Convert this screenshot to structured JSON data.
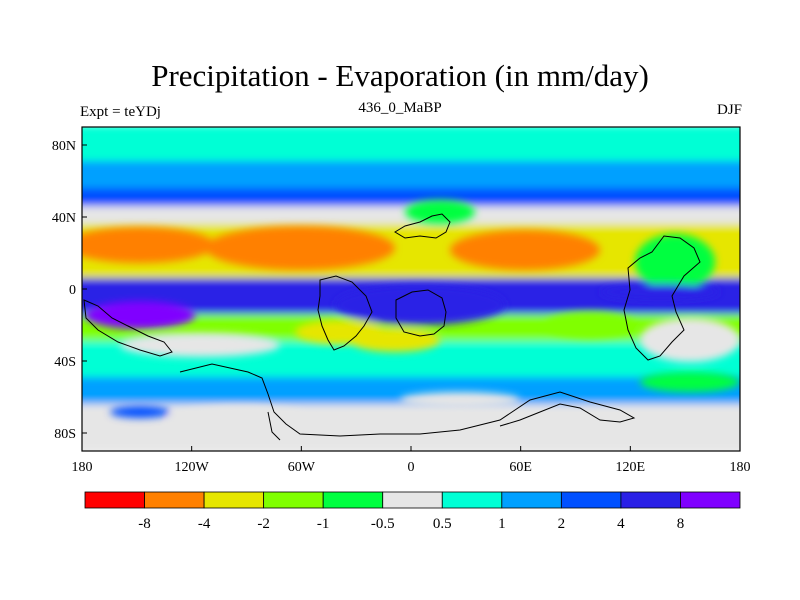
{
  "title": "Precipitation - Evaporation (in mm/day)",
  "subtitle_left": "Expt = teYDj",
  "subtitle_center": "436_0_MaBP",
  "subtitle_right": "DJF",
  "chart_data": {
    "type": "heatmap",
    "title": "Precipitation - Evaporation (in mm/day)",
    "xlabel": "",
    "ylabel": "",
    "xlim": [
      -180,
      180
    ],
    "ylim": [
      -90,
      90
    ],
    "x_ticks": [
      {
        "value": -180,
        "label": "180"
      },
      {
        "value": -120,
        "label": "120W"
      },
      {
        "value": -60,
        "label": "60W"
      },
      {
        "value": 0,
        "label": "0"
      },
      {
        "value": 60,
        "label": "60E"
      },
      {
        "value": 120,
        "label": "120E"
      },
      {
        "value": 180,
        "label": "180"
      }
    ],
    "y_ticks": [
      {
        "value": 80,
        "label": "80N"
      },
      {
        "value": 40,
        "label": "40N"
      },
      {
        "value": 0,
        "label": "0"
      },
      {
        "value": -40,
        "label": "40S"
      },
      {
        "value": -80,
        "label": "80S"
      }
    ],
    "colorbar": {
      "boundaries": [
        "-8",
        "-4",
        "-2",
        "-1",
        "-0.5",
        "0.5",
        "1",
        "2",
        "4",
        "8"
      ],
      "colors": [
        "#ff0000",
        "#ff8000",
        "#e6e600",
        "#80ff00",
        "#00ff40",
        "#e6e6e6",
        "#00ffd5",
        "#00a0ff",
        "#0050ff",
        "#2a20e6",
        "#8000ff"
      ]
    },
    "field_bands": [
      {
        "lat_from": 90,
        "lat_to": 70,
        "level": 6,
        "description": "cyan, 0.5 to 1"
      },
      {
        "lat_from": 70,
        "lat_to": 55,
        "level": 7,
        "description": "light blue, 1 to 2"
      },
      {
        "lat_from": 55,
        "lat_to": 45,
        "level": 8,
        "description": "blue, 2 to 4"
      },
      {
        "lat_from": 45,
        "lat_to": 35,
        "level": 5,
        "description": "near zero"
      },
      {
        "lat_from": 35,
        "lat_to": 5,
        "level": 2,
        "description": "yellow, -4 to -2"
      },
      {
        "lat_from": 5,
        "lat_to": -15,
        "level": 9,
        "description": "dark blue, 4 to 8"
      },
      {
        "lat_from": -15,
        "lat_to": -30,
        "level": 3,
        "description": "green, -2 to -1"
      },
      {
        "lat_from": -30,
        "lat_to": -50,
        "level": 6,
        "description": "cyan, 0.5 to 1"
      },
      {
        "lat_from": -50,
        "lat_to": -65,
        "level": 7,
        "description": "light blue, 1 to 2"
      },
      {
        "lat_from": -65,
        "lat_to": -90,
        "level": 5,
        "description": "near zero over Antarctica"
      }
    ]
  }
}
